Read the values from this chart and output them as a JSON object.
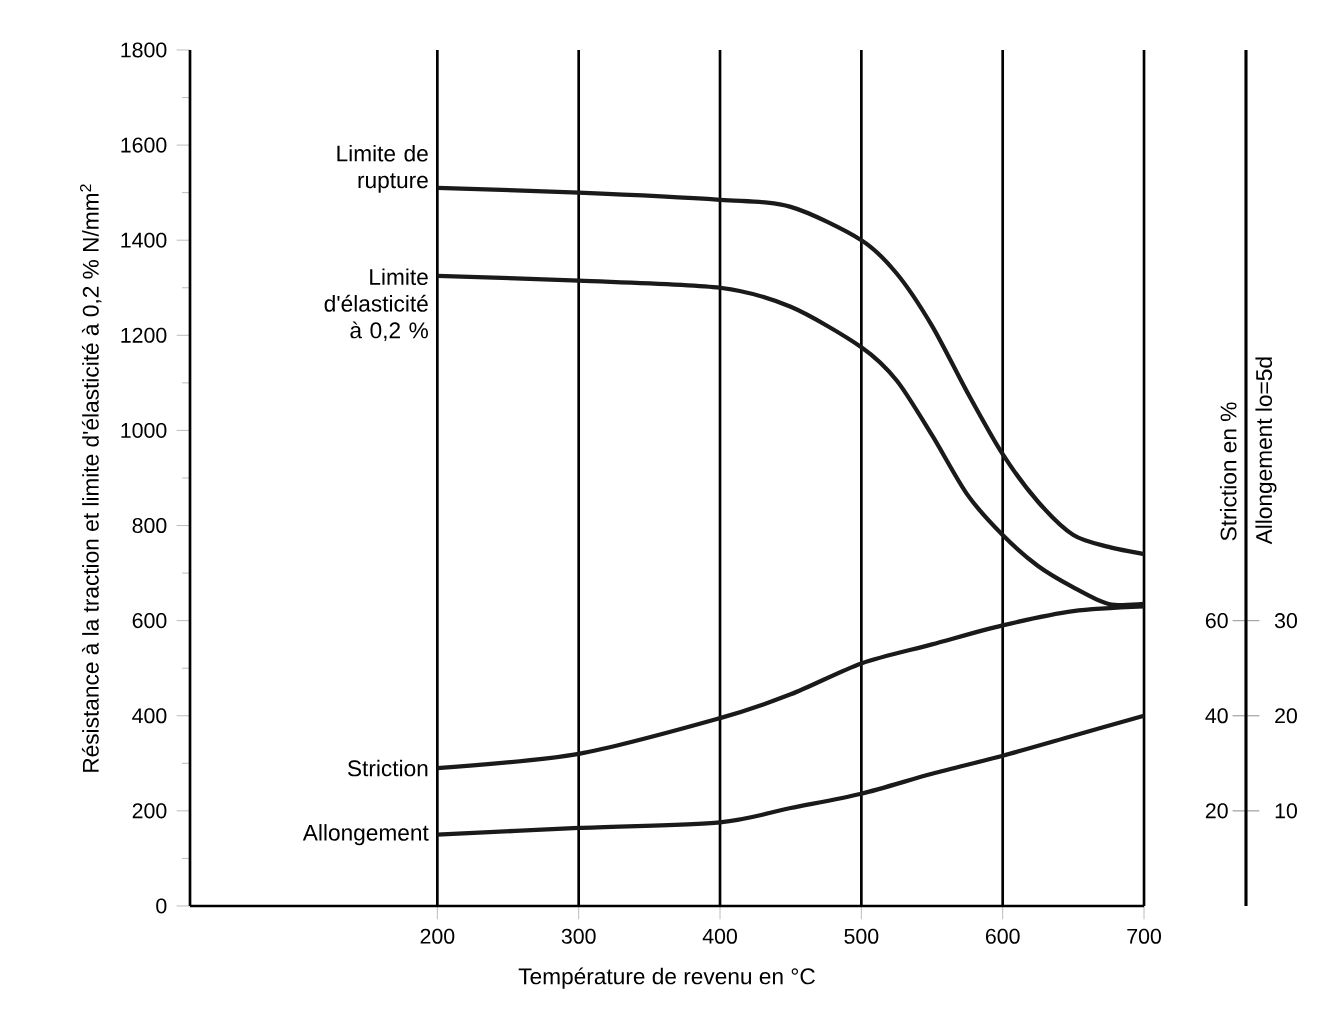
{
  "chart_data": {
    "type": "line",
    "xlabel": "Température de revenu en °C",
    "ylabel": "Résistance à la traction et limite d'élasticité à 0,2 %  N/mm$^{2}$",
    "y2label": "Striction en %",
    "y3label": "Allongement lo=5d",
    "xlim": [
      25,
      700
    ],
    "xticks": [
      200,
      300,
      400,
      500,
      600,
      700
    ],
    "ylim": [
      0,
      1800
    ],
    "yticks": [
      0,
      200,
      400,
      600,
      800,
      1000,
      1200,
      1400,
      1600,
      1800
    ],
    "y2lim": [
      0,
      180
    ],
    "y2ticks": [
      20,
      40,
      60
    ],
    "y3lim": [
      0,
      90
    ],
    "y3ticks": [
      10,
      20,
      30
    ],
    "grid": "x",
    "series": [
      {
        "name": "Limite de rupture",
        "color": "#1a1a1a",
        "x": [
          200,
          300,
          400,
          450,
          500,
          525,
          550,
          575,
          600,
          625,
          650,
          675,
          700
        ],
        "values": [
          1510,
          1500,
          1485,
          1470,
          1400,
          1330,
          1220,
          1080,
          950,
          850,
          780,
          755,
          740
        ]
      },
      {
        "name": "Limite d'élasticité à 0,2 %",
        "color": "#1a1a1a",
        "x": [
          200,
          300,
          400,
          450,
          500,
          525,
          550,
          575,
          600,
          625,
          650,
          675,
          700
        ],
        "values": [
          1325,
          1315,
          1300,
          1260,
          1175,
          1105,
          990,
          865,
          780,
          715,
          670,
          635,
          635
        ]
      },
      {
        "name": "Striction",
        "color": "#1a1a1a",
        "axis": "y2",
        "x": [
          200,
          300,
          400,
          450,
          500,
          550,
          600,
          650,
          700
        ],
        "values": [
          29,
          32,
          39.5,
          44.5,
          51,
          55,
          59,
          62,
          63
        ]
      },
      {
        "name": "Allongement",
        "color": "#1a1a1a",
        "axis": "y3",
        "x": [
          200,
          300,
          400,
          450,
          500,
          550,
          600,
          650,
          700
        ],
        "values": [
          7.5,
          8.2,
          8.8,
          10.3,
          11.8,
          13.9,
          15.8,
          17.9,
          20
        ]
      }
    ]
  }
}
